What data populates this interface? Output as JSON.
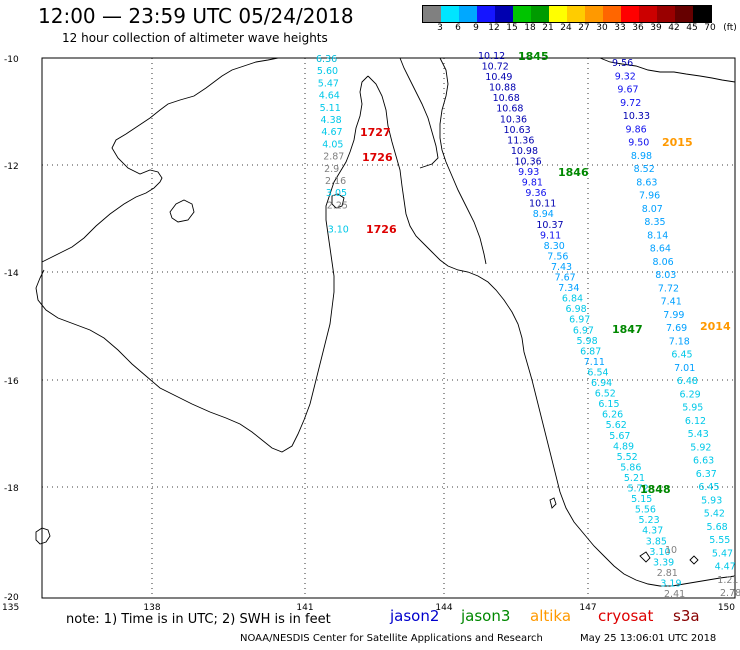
{
  "header": {
    "title": "12:00 — 23:59 UTC 05/24/2018",
    "subtitle": "12 hour collection of altimeter wave heights"
  },
  "colorbar": {
    "unit": "(ft)",
    "labels": [
      "3",
      "6",
      "9",
      "12",
      "15",
      "18",
      "21",
      "24",
      "27",
      "30",
      "33",
      "36",
      "39",
      "42",
      "45",
      "70"
    ],
    "colors": [
      "#808080",
      "#00e5ff",
      "#00a8ff",
      "#1515ff",
      "#0000b0",
      "#00c400",
      "#009b00",
      "#ffff00",
      "#ffcc00",
      "#ff9900",
      "#ff6600",
      "#ff0000",
      "#cc0000",
      "#990000",
      "#660000",
      "#000000"
    ]
  },
  "map": {
    "lat_labels": [
      "-10",
      "-12",
      "-14",
      "-16",
      "-18",
      "-20"
    ],
    "lon_labels": [
      "135",
      "138",
      "141",
      "144",
      "147",
      "150"
    ],
    "tracks": [
      {
        "name": "cryosat",
        "values": [
          {
            "v": "6.36",
            "c": "#00b8d8"
          },
          {
            "v": "5.60",
            "c": "#00c8e8"
          },
          {
            "v": "5.47",
            "c": "#00c8e8"
          },
          {
            "v": "4.64",
            "c": "#00c8e8"
          },
          {
            "v": "5.11",
            "c": "#00c8e8"
          },
          {
            "v": "4.38",
            "c": "#00c8e8"
          },
          {
            "v": "4.67",
            "c": "#00c8e8"
          },
          {
            "v": "4.05",
            "c": "#00c8e8"
          },
          {
            "v": "2.87",
            "c": "#808080"
          },
          {
            "v": "2.9",
            "c": "#808080"
          },
          {
            "v": "2.16",
            "c": "#808080"
          },
          {
            "v": "3.05",
            "c": "#00c8e8"
          },
          {
            "v": "2.25",
            "c": "#808080"
          },
          {
            "v": "3.10",
            "c": "#00c8e8"
          }
        ]
      },
      {
        "name": "jason2",
        "values": [
          {
            "v": "10.12",
            "c": "#0000b0"
          },
          {
            "v": "10.72",
            "c": "#0000b0"
          },
          {
            "v": "10.49",
            "c": "#0000b0"
          },
          {
            "v": "10.88",
            "c": "#0000b0"
          },
          {
            "v": "10.68",
            "c": "#0000b0"
          },
          {
            "v": "10.68",
            "c": "#0000b0"
          },
          {
            "v": "10.36",
            "c": "#0000b0"
          },
          {
            "v": "10.63",
            "c": "#0000b0"
          },
          {
            "v": "11.36",
            "c": "#0000b0"
          },
          {
            "v": "10.98",
            "c": "#0000b0"
          },
          {
            "v": "10.36",
            "c": "#0000b0"
          },
          {
            "v": "9.93",
            "c": "#1010ee"
          },
          {
            "v": "9.81",
            "c": "#1010ee"
          },
          {
            "v": "9.36",
            "c": "#1010ee"
          },
          {
            "v": "10.11",
            "c": "#0000b0"
          },
          {
            "v": "8.94",
            "c": "#00a0ff"
          },
          {
            "v": "10.37",
            "c": "#0000b0"
          },
          {
            "v": "9.11",
            "c": "#1010ee"
          },
          {
            "v": "8.30",
            "c": "#00a0ff"
          },
          {
            "v": "7.56",
            "c": "#00a0ff"
          },
          {
            "v": "7.43",
            "c": "#00a0ff"
          },
          {
            "v": "7.67",
            "c": "#00a0ff"
          },
          {
            "v": "7.34",
            "c": "#00a0ff"
          },
          {
            "v": "6.84",
            "c": "#00c8e8"
          },
          {
            "v": "6.98",
            "c": "#00c8e8"
          },
          {
            "v": "6.97",
            "c": "#00c8e8"
          },
          {
            "v": "6.97",
            "c": "#00c8e8"
          },
          {
            "v": "5.98",
            "c": "#00c8e8"
          },
          {
            "v": "6.87",
            "c": "#00c8e8"
          },
          {
            "v": "7.11",
            "c": "#00a0ff"
          },
          {
            "v": "6.54",
            "c": "#00c8e8"
          },
          {
            "v": "6.94",
            "c": "#00c8e8"
          },
          {
            "v": "6.52",
            "c": "#00c8e8"
          },
          {
            "v": "6.15",
            "c": "#00c8e8"
          },
          {
            "v": "6.26",
            "c": "#00c8e8"
          },
          {
            "v": "5.62",
            "c": "#00c8e8"
          },
          {
            "v": "5.67",
            "c": "#00c8e8"
          },
          {
            "v": "4.89",
            "c": "#00c8e8"
          },
          {
            "v": "5.52",
            "c": "#00c8e8"
          },
          {
            "v": "5.86",
            "c": "#00c8e8"
          },
          {
            "v": "5.21",
            "c": "#00c8e8"
          },
          {
            "v": "5.72",
            "c": "#00c8e8"
          },
          {
            "v": "5.15",
            "c": "#00c8e8"
          },
          {
            "v": "5.56",
            "c": "#00c8e8"
          },
          {
            "v": "5.23",
            "c": "#00c8e8"
          },
          {
            "v": "4.37",
            "c": "#00c8e8"
          },
          {
            "v": "3.85",
            "c": "#00c8e8"
          },
          {
            "v": "3.10",
            "c": "#00c8e8"
          },
          {
            "v": "3.39",
            "c": "#00c8e8"
          },
          {
            "v": "2.81",
            "c": "#808080"
          },
          {
            "v": "3.19",
            "c": "#00c8e8"
          },
          {
            "v": "2.41",
            "c": "#808080"
          }
        ]
      },
      {
        "name": "altika",
        "values": [
          {
            "v": "9.56",
            "c": "#0000b0"
          },
          {
            "v": "9.32",
            "c": "#1010ee"
          },
          {
            "v": "9.67",
            "c": "#1010ee"
          },
          {
            "v": "9.72",
            "c": "#1010ee"
          },
          {
            "v": "10.33",
            "c": "#0000b0"
          },
          {
            "v": "9.86",
            "c": "#1010ee"
          },
          {
            "v": "9.50",
            "c": "#1010ee"
          },
          {
            "v": "8.98",
            "c": "#00a0ff"
          },
          {
            "v": "8.52",
            "c": "#00a0ff"
          },
          {
            "v": "8.63",
            "c": "#00a0ff"
          },
          {
            "v": "7.96",
            "c": "#00a0ff"
          },
          {
            "v": "8.07",
            "c": "#00a0ff"
          },
          {
            "v": "8.35",
            "c": "#00a0ff"
          },
          {
            "v": "8.14",
            "c": "#00a0ff"
          },
          {
            "v": "8.64",
            "c": "#00a0ff"
          },
          {
            "v": "8.06",
            "c": "#00a0ff"
          },
          {
            "v": "8.03",
            "c": "#00a0ff"
          },
          {
            "v": "7.72",
            "c": "#00a0ff"
          },
          {
            "v": "7.41",
            "c": "#00a0ff"
          },
          {
            "v": "7.99",
            "c": "#00a0ff"
          },
          {
            "v": "7.69",
            "c": "#00a0ff"
          },
          {
            "v": "7.18",
            "c": "#00a0ff"
          },
          {
            "v": "6.45",
            "c": "#00c8e8"
          },
          {
            "v": "7.01",
            "c": "#00a0ff"
          },
          {
            "v": "6.48",
            "c": "#00c8e8"
          },
          {
            "v": "6.29",
            "c": "#00c8e8"
          },
          {
            "v": "5.95",
            "c": "#00c8e8"
          },
          {
            "v": "6.12",
            "c": "#00c8e8"
          },
          {
            "v": "5.43",
            "c": "#00c8e8"
          },
          {
            "v": "5.92",
            "c": "#00c8e8"
          },
          {
            "v": "6.63",
            "c": "#00c8e8"
          },
          {
            "v": "6.37",
            "c": "#00c8e8"
          },
          {
            "v": "6.45",
            "c": "#00c8e8"
          },
          {
            "v": "5.93",
            "c": "#00c8e8"
          },
          {
            "v": "5.42",
            "c": "#00c8e8"
          },
          {
            "v": "5.68",
            "c": "#00c8e8"
          },
          {
            "v": "5.55",
            "c": "#00c8e8"
          },
          {
            "v": "5.47",
            "c": "#00c8e8"
          },
          {
            "v": "4.47",
            "c": "#00c8e8"
          },
          {
            "v": "1.21",
            "c": "#808080"
          },
          {
            "v": "2.78",
            "c": "#808080"
          }
        ]
      }
    ],
    "time_labels": [
      {
        "t": "1845",
        "c": "#008800"
      },
      {
        "t": "1846",
        "c": "#008800"
      },
      {
        "t": "1847",
        "c": "#008800"
      },
      {
        "t": "1848",
        "c": "#008800"
      },
      {
        "t": "2015",
        "c": "#ff9900"
      },
      {
        "t": "2014",
        "c": "#ff9900"
      },
      {
        "t": "1727",
        "c": "#dd0000"
      },
      {
        "t": "1726",
        "c": "#dd0000"
      },
      {
        "t": "1726",
        "c": "#dd0000"
      }
    ],
    "stray_labels": [
      {
        "v": "10",
        "c": "#808080"
      }
    ]
  },
  "footer": {
    "note": "note:  1) Time is in UTC;  2) SWH is in feet",
    "legend": [
      {
        "label": "jason2",
        "color": "#0000cc"
      },
      {
        "label": "jason3",
        "color": "#008800"
      },
      {
        "label": "altika",
        "color": "#ff9900"
      },
      {
        "label": "cryosat",
        "color": "#dd0000"
      },
      {
        "label": "s3a",
        "color": "#880000"
      }
    ],
    "credit": "NOAA/NESDIS Center for Satellite Applications and Research",
    "timestamp": "May 25 13:06:01 UTC 2018"
  }
}
